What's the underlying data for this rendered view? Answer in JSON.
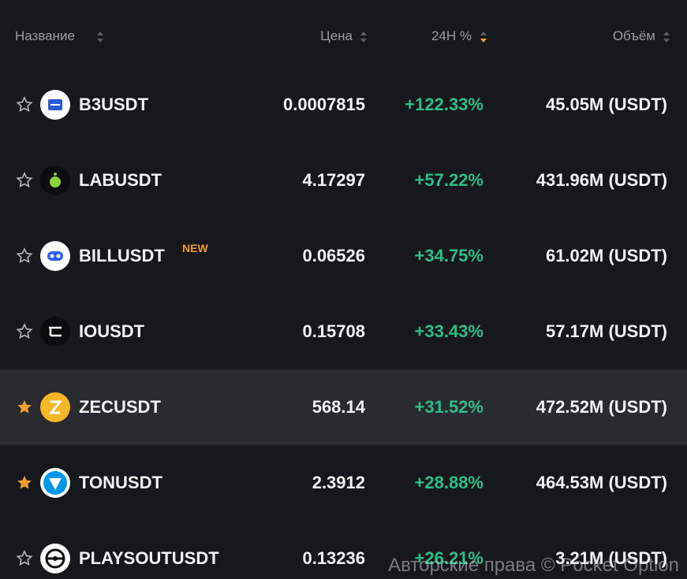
{
  "header": {
    "columns": [
      "Название",
      "Цена",
      "24H %",
      "Объём"
    ]
  },
  "table": {
    "rows": [
      {
        "symbol": "B3USDT",
        "price": "0.0007815",
        "change": "+122.33%",
        "volume": "45.05M (USDT)",
        "starred": false
      },
      {
        "symbol": "LABUSDT",
        "price": "4.17297",
        "change": "+57.22%",
        "volume": "431.96M (USDT)",
        "starred": false
      },
      {
        "symbol": "BILLUSDT",
        "badge": "NEW",
        "price": "0.06526",
        "change": "+34.75%",
        "volume": "61.02M (USDT)",
        "starred": false
      },
      {
        "symbol": "IOUSDT",
        "price": "0.15708",
        "change": "+33.43%",
        "volume": "57.17M (USDT)",
        "starred": false
      },
      {
        "symbol": "ZECUSDT",
        "price": "568.14",
        "change": "+31.52%",
        "volume": "472.52M (USDT)",
        "starred": true,
        "highlighted": true
      },
      {
        "symbol": "TONUSDT",
        "price": "2.3912",
        "change": "+28.88%",
        "volume": "464.53M (USDT)",
        "starred": true
      },
      {
        "symbol": "PLAYSOUTUSDT",
        "price": "0.13236",
        "change": "+26.21%",
        "volume": "3.21M (USDT)",
        "starred": false
      }
    ]
  },
  "watermark": "Авторские права © Pocket Option"
}
